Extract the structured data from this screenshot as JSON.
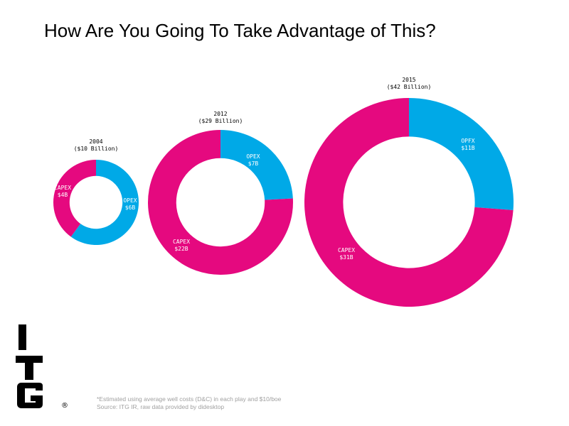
{
  "title": "How Are You Going To Take Advantage of This?",
  "chart_data": {
    "type": "donut",
    "colors": {
      "capex": "#e5097f",
      "opex": "#00a9e7"
    },
    "charts": [
      {
        "year": "2004",
        "total_label": "($10 Billion)",
        "total": 10,
        "segments": [
          {
            "name": "CAPEX",
            "label": "CAPEX",
            "value_label": "$4B",
            "value": 4
          },
          {
            "name": "OPEX",
            "label": "OPEX",
            "value_label": "$6B",
            "value": 6
          }
        ]
      },
      {
        "year": "2012",
        "total_label": "($29 Billion)",
        "total": 29,
        "segments": [
          {
            "name": "CAPEX",
            "label": "CAPEX",
            "value_label": "$22B",
            "value": 22
          },
          {
            "name": "OPEX",
            "label": "OPEX",
            "value_label": "$7B",
            "value": 7
          }
        ]
      },
      {
        "year": "2015",
        "total_label": "($42 Billion)",
        "total": 42,
        "segments": [
          {
            "name": "CAPEX",
            "label": "CAPEX",
            "value_label": "$31B",
            "value": 31
          },
          {
            "name": "OPEX",
            "label": "OPFX",
            "value_label": "$11B",
            "value": 11
          }
        ]
      }
    ]
  },
  "logo": {
    "letters": [
      "I",
      "T",
      "G"
    ],
    "mark": "®"
  },
  "footnote": {
    "line1": "*Estimated using average well costs (D&C) in each play and $10/boe",
    "line2": "Source: ITG IR, raw data provided by didesktop"
  }
}
